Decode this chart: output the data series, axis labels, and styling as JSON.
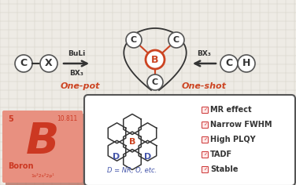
{
  "bg_color": "#eeebe5",
  "grid_color": "#d5d0c8",
  "boron": {
    "number": "5",
    "weight": "10.811",
    "symbol": "B",
    "name": "Boron",
    "config": "1s²2s²2p¹",
    "bg_color": "#e89080",
    "shadow_color": "#b06050",
    "text_color": "#cc3822"
  },
  "one_pot_label": "One-pot",
  "one_shot_label": "One-shot",
  "buli_text": "BuLi",
  "bx3_above": "BX₃",
  "bx3_right": "BX₃",
  "orange": "#cc4422",
  "blue": "#4455aa",
  "dark": "#333333",
  "mid": "#555555",
  "features": [
    "MR effect",
    "Narrow FWHM",
    "High PLQY",
    "TADF",
    "Stable"
  ],
  "d_label": "D = NR, O, etc.",
  "check_color": "#cc3333"
}
